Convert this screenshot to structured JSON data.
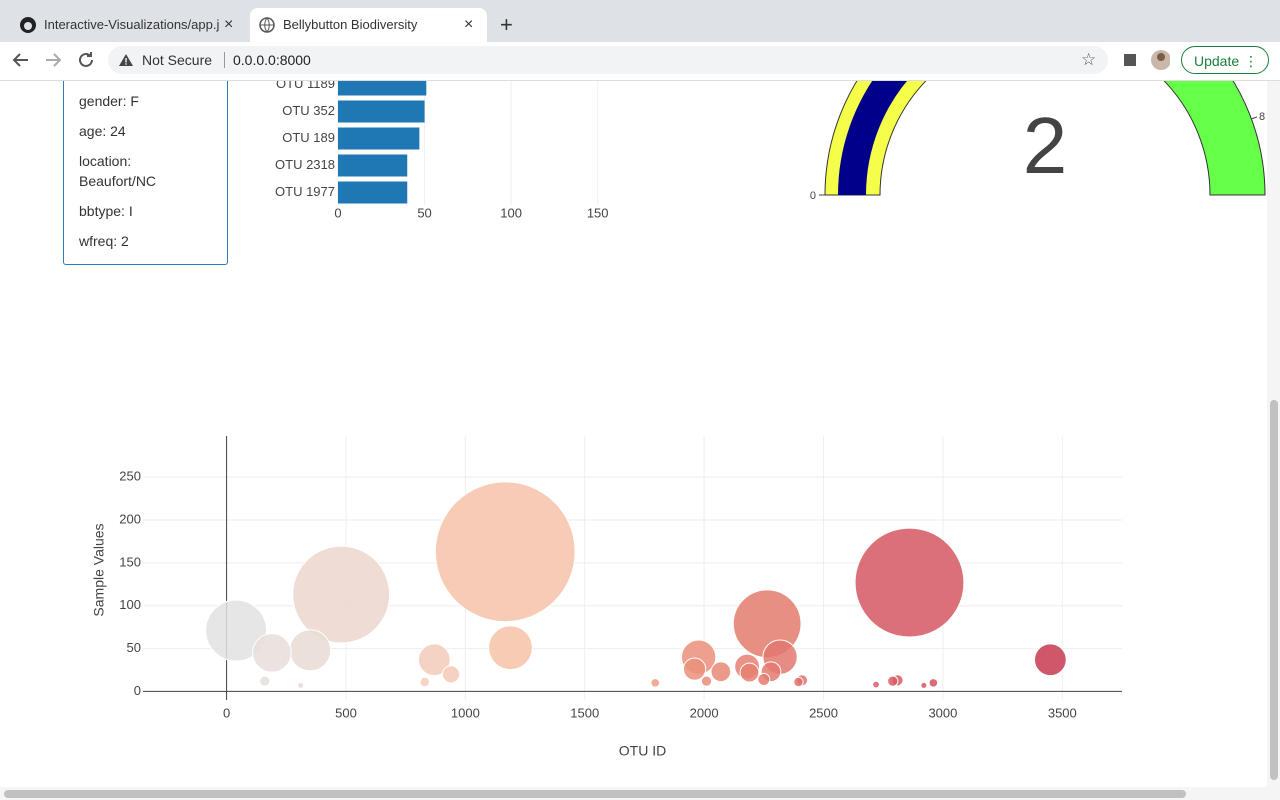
{
  "browser": {
    "tabs": [
      "Interactive-Visualizations/app.j",
      "Bellybutton Biodiversity"
    ],
    "security": "Not Secure",
    "url": "0.0.0.0:8000",
    "update_button": "Update"
  },
  "metadata_panel": [
    "gender: F",
    "age: 24",
    "location: Beaufort/NC",
    "bbtype: I",
    "wfreq: 2"
  ],
  "chart_data": [
    {
      "type": "bar",
      "orientation": "h",
      "categories": [
        "OTU 1189",
        "OTU 352",
        "OTU 189",
        "OTU 2318",
        "OTU 1977"
      ],
      "values": [
        51,
        50,
        47,
        40,
        40
      ],
      "color": "#1f77b4",
      "xlim": [
        0,
        160
      ],
      "xticks": [
        0,
        50,
        100,
        150
      ],
      "grid": true
    },
    {
      "type": "gauge",
      "value": 2,
      "ticks": [
        0,
        8
      ]
    },
    {
      "type": "scatter",
      "xlabel": "OTU ID",
      "ylabel": "Sample Values",
      "x": [
        1167,
        2860,
        480,
        2264,
        40,
        1189,
        350,
        190,
        1977,
        2318,
        3450,
        870,
        1960,
        2180,
        2070,
        2280,
        2190,
        940,
        2250,
        160,
        2010,
        2810,
        2410,
        2790,
        830,
        2395,
        1795,
        2960,
        2720,
        2920,
        310
      ],
      "values": [
        163,
        127,
        113,
        79,
        71,
        51,
        48,
        45,
        40,
        40,
        37,
        37,
        26,
        29,
        23,
        23,
        22,
        20,
        14,
        12,
        12,
        13,
        13,
        12,
        11,
        11,
        10,
        10,
        8,
        7,
        7
      ],
      "colorscale": [
        "#e2e2e2",
        "#f2d0c2",
        "#f8bb9b",
        "#e88673",
        "#d95c64",
        "#c63a4f"
      ],
      "xlim": [
        -350,
        3750
      ],
      "ylim": [
        -10,
        298
      ],
      "xticks": [
        0,
        500,
        1000,
        1500,
        2000,
        2500,
        3000,
        3500
      ],
      "yticks": [
        0,
        50,
        100,
        150,
        200,
        250
      ],
      "grid": true
    }
  ]
}
